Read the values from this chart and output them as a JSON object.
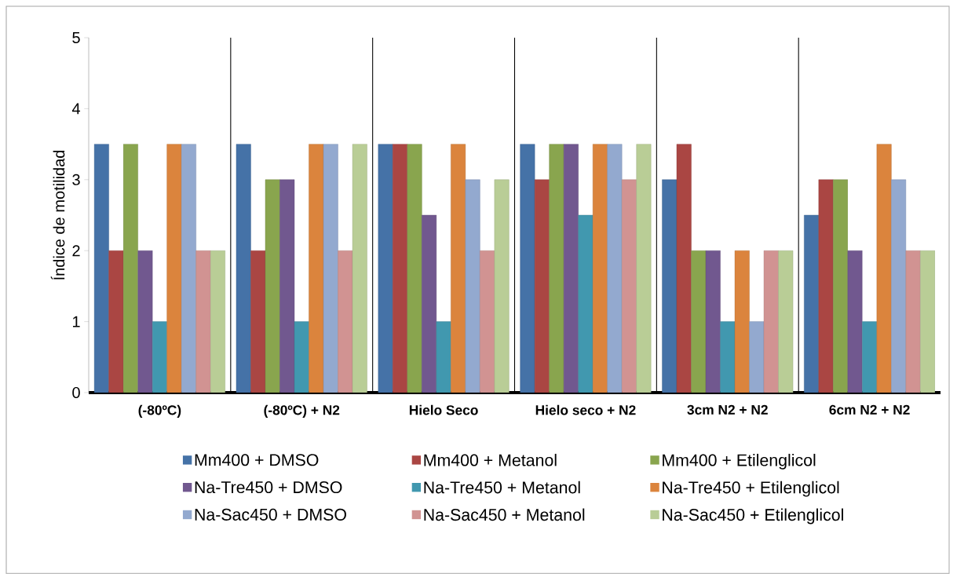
{
  "chart_data": {
    "type": "bar",
    "ylabel": "Índice de motilidad",
    "categories": [
      "(-80ºC)",
      "(-80ºC) + N2",
      "Hielo Seco",
      "Hielo seco  + N2",
      "3cm N2 + N2",
      "6cm N2 + N2"
    ],
    "ylim": [
      0,
      5
    ],
    "yticks": [
      0,
      1,
      2,
      3,
      4,
      5
    ],
    "grid": "x",
    "legend": "bottom",
    "series": [
      {
        "name": "Mm400 + DMSO",
        "color": "#4572a7",
        "values": [
          3.5,
          3.5,
          3.5,
          3.5,
          3,
          2.5
        ]
      },
      {
        "name": "Mm400 + Metanol",
        "color": "#aa4643",
        "values": [
          2,
          2,
          3.5,
          3,
          3.5,
          3
        ]
      },
      {
        "name": "Mm400 + Etilenglicol",
        "color": "#89a54e",
        "values": [
          3.5,
          3,
          3.5,
          3.5,
          2,
          3
        ]
      },
      {
        "name": "Na-Tre450 + DMSO",
        "color": "#71588f",
        "values": [
          2,
          3,
          2.5,
          3.5,
          2,
          2
        ]
      },
      {
        "name": "Na-Tre450 + Metanol",
        "color": "#4198af",
        "values": [
          1,
          1,
          1,
          2.5,
          1,
          1
        ]
      },
      {
        "name": "Na-Tre450 + Etilenglicol",
        "color": "#db843d",
        "values": [
          3.5,
          3.5,
          3.5,
          3.5,
          2,
          3.5
        ]
      },
      {
        "name": "Na-Sac450 + DMSO",
        "color": "#93a9cf",
        "values": [
          3.5,
          3.5,
          3,
          3.5,
          1,
          3
        ]
      },
      {
        "name": "Na-Sac450 + Metanol",
        "color": "#d19392",
        "values": [
          2,
          2,
          2,
          3,
          2,
          2
        ]
      },
      {
        "name": "Na-Sac450 + Etilenglicol",
        "color": "#b9cd96",
        "values": [
          2,
          3.5,
          3,
          3.5,
          2,
          2
        ]
      }
    ]
  }
}
